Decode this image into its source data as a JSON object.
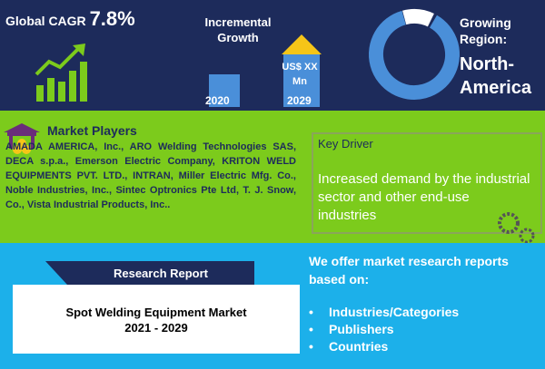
{
  "cagr": {
    "label": "Global CAGR",
    "value": "7.8%"
  },
  "growth": {
    "title": "Incremental Growth",
    "amount": "US$ XX Mn",
    "start_year": "2020",
    "end_year": "2029"
  },
  "region": {
    "label": "Growing Region:",
    "name": "North-America"
  },
  "players": {
    "title": "Market Players",
    "text": "AMADA AMERICA, Inc., ARO Welding Technologies SAS, DECA s.p.a., Emerson Electric Company, KRITON WELD EQUIPMENTS PVT. LTD., INTRAN, Miller Electric Mfg. Co., Noble Industries, Inc., Sintec Optronics Pte Ltd, T. J. Snow, Co., Vista Industrial Products, Inc.."
  },
  "driver": {
    "title": "Key Driver",
    "text": "Increased demand by the industrial sector and other end-use industries"
  },
  "report": {
    "label": "Research Report",
    "title": "Spot Welding Equipment Market",
    "years": "2021 - 2029"
  },
  "offer": {
    "text": "We offer market research reports based on:",
    "items": [
      "Industries/Categories",
      "Publishers",
      "Countries"
    ]
  }
}
